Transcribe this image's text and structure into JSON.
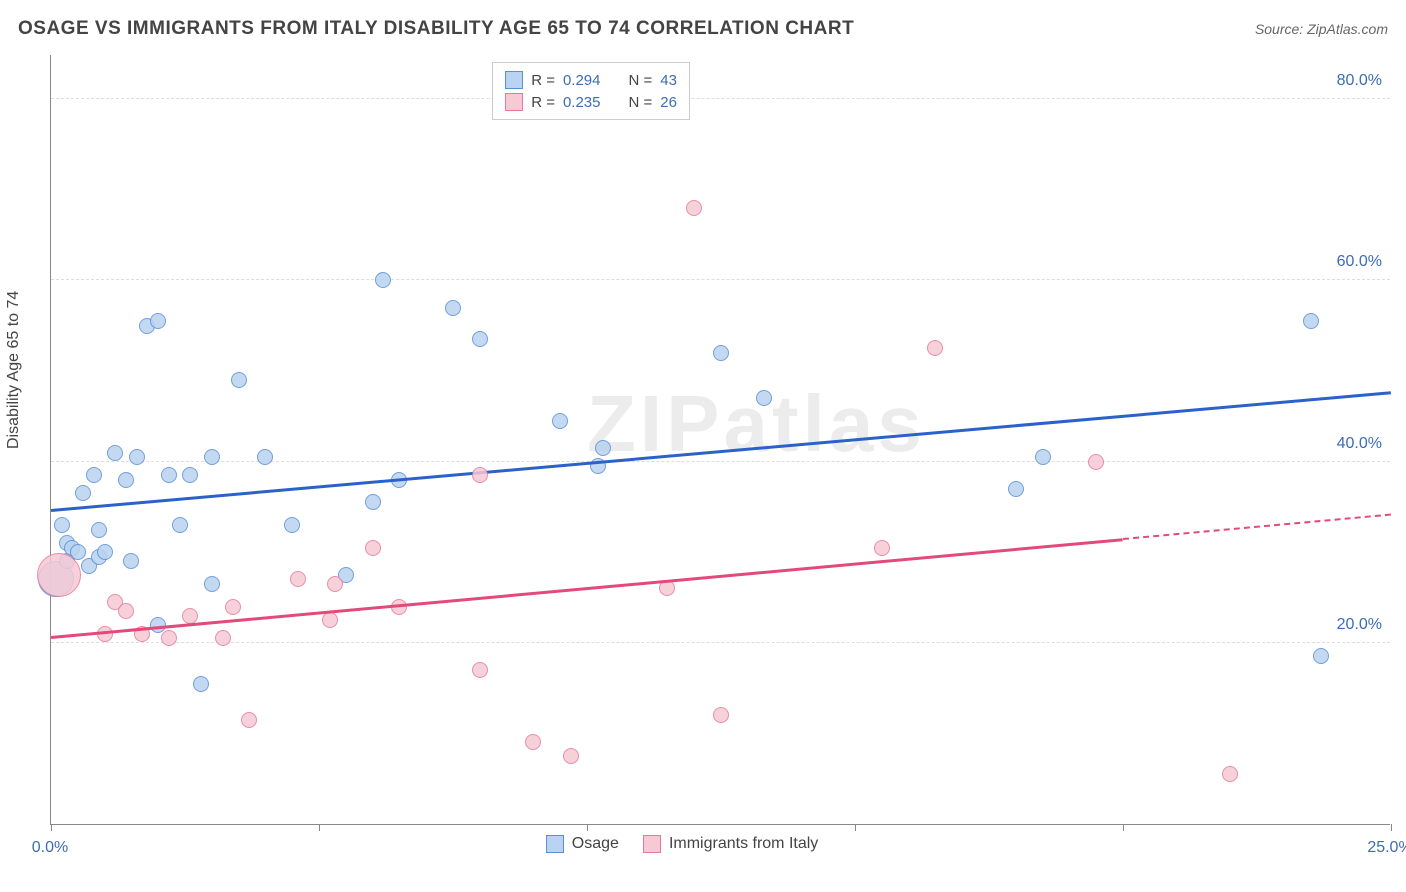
{
  "title": "OSAGE VS IMMIGRANTS FROM ITALY DISABILITY AGE 65 TO 74 CORRELATION CHART",
  "source": "Source: ZipAtlas.com",
  "y_axis_label": "Disability Age 65 to 74",
  "watermark": "ZIPatlas",
  "chart": {
    "type": "scatter",
    "xlim": [
      0,
      25
    ],
    "ylim": [
      0,
      85
    ],
    "x_ticks": [
      0,
      5,
      10,
      15,
      20,
      25
    ],
    "x_tick_labels": [
      "0.0%",
      "",
      "",
      "",
      "",
      "25.0%"
    ],
    "y_ticks": [
      20,
      40,
      60,
      80
    ],
    "y_tick_labels": [
      "20.0%",
      "40.0%",
      "60.0%",
      "80.0%"
    ],
    "background_color": "#ffffff",
    "grid_color": "#dddddd",
    "axis_color": "#888888",
    "tick_label_color": "#3b6db5",
    "series": [
      {
        "name": "Osage",
        "fill": "#b9d3f0",
        "stroke": "#5a8fd6",
        "r_value": "0.294",
        "n_value": "43",
        "marker_radius": 8,
        "trend": {
          "x1": 0,
          "y1": 34.5,
          "x2": 25,
          "y2": 47.5,
          "color": "#2a62c9",
          "dash_from": 25
        },
        "points": [
          [
            0.1,
            27.0,
            18
          ],
          [
            0.2,
            33
          ],
          [
            0.3,
            29
          ],
          [
            0.3,
            31
          ],
          [
            0.4,
            30.5
          ],
          [
            0.5,
            30
          ],
          [
            0.6,
            36.5
          ],
          [
            0.7,
            28.5
          ],
          [
            0.8,
            38.5
          ],
          [
            0.9,
            29.5
          ],
          [
            0.9,
            32.5
          ],
          [
            1.0,
            30
          ],
          [
            1.2,
            41
          ],
          [
            1.4,
            38
          ],
          [
            1.5,
            29
          ],
          [
            1.6,
            40.5
          ],
          [
            1.8,
            55
          ],
          [
            2.0,
            55.5
          ],
          [
            2.0,
            22
          ],
          [
            2.2,
            38.5
          ],
          [
            2.4,
            33
          ],
          [
            2.6,
            38.5
          ],
          [
            2.8,
            15.5
          ],
          [
            3.0,
            40.5
          ],
          [
            3.0,
            26.5
          ],
          [
            3.5,
            49
          ],
          [
            4.0,
            40.5
          ],
          [
            4.5,
            33
          ],
          [
            5.5,
            27.5
          ],
          [
            6.0,
            35.5
          ],
          [
            6.2,
            60
          ],
          [
            6.5,
            38
          ],
          [
            7.5,
            57
          ],
          [
            8.0,
            53.5
          ],
          [
            9.5,
            44.5
          ],
          [
            10.2,
            39.5
          ],
          [
            10.3,
            41.5
          ],
          [
            12.5,
            52
          ],
          [
            13.3,
            47
          ],
          [
            18.5,
            40.5
          ],
          [
            18.0,
            37
          ],
          [
            23.5,
            55.5
          ],
          [
            23.7,
            18.5
          ]
        ]
      },
      {
        "name": "Immigrants from Italy",
        "fill": "#f6c9d4",
        "stroke": "#e77a9a",
        "r_value": "0.235",
        "n_value": "26",
        "marker_radius": 8,
        "trend": {
          "x1": 0,
          "y1": 20.5,
          "x2": 25,
          "y2": 34,
          "color": "#e24a7a",
          "dash_from": 20
        },
        "points": [
          [
            0.15,
            27.5,
            22
          ],
          [
            1.0,
            21
          ],
          [
            1.2,
            24.5
          ],
          [
            1.4,
            23.5
          ],
          [
            1.7,
            21
          ],
          [
            2.2,
            20.5
          ],
          [
            2.6,
            23
          ],
          [
            3.2,
            20.5
          ],
          [
            3.4,
            24
          ],
          [
            3.7,
            11.5
          ],
          [
            4.6,
            27
          ],
          [
            5.2,
            22.5
          ],
          [
            5.3,
            26.5
          ],
          [
            6.0,
            30.5
          ],
          [
            6.5,
            24
          ],
          [
            8.0,
            17
          ],
          [
            8.0,
            38.5
          ],
          [
            9.0,
            9
          ],
          [
            9.7,
            7.5
          ],
          [
            11.5,
            26
          ],
          [
            12.0,
            68
          ],
          [
            12.5,
            12
          ],
          [
            15.5,
            30.5
          ],
          [
            16.5,
            52.5
          ],
          [
            19.5,
            40
          ],
          [
            22.0,
            5.5
          ]
        ]
      }
    ]
  },
  "legend_top": {
    "r_label": "R =",
    "n_label": "N ="
  },
  "legend_bottom": {
    "series1": "Osage",
    "series2": "Immigrants from Italy"
  }
}
